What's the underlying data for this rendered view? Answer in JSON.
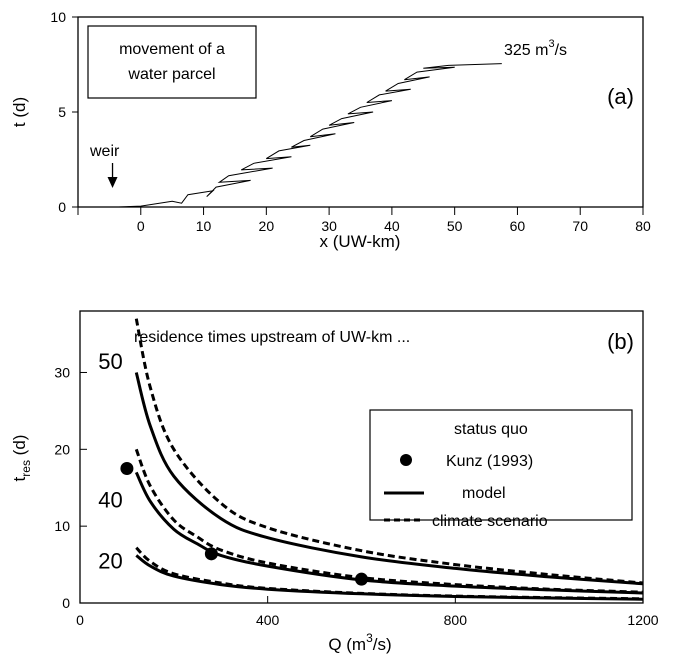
{
  "chart_data": [
    {
      "panel": "(a)",
      "type": "line",
      "xlabel": "x (UW-km)",
      "ylabel": "t (d)",
      "xlim": [
        -10,
        80
      ],
      "ylim": [
        0,
        10
      ],
      "x_ticks": [
        0,
        10,
        20,
        30,
        40,
        50,
        60,
        70,
        80
      ],
      "y_ticks": [
        0,
        5,
        10
      ],
      "annotations": {
        "box_line1": "movement of a",
        "box_line2": "water parcel",
        "flow_base": "325 m",
        "flow_sup": "3",
        "flow_tail": "/s",
        "weir": "weir",
        "weir_x": -4.5
      },
      "series": [
        {
          "points": [
            [
              -3.5,
              0
            ],
            [
              0,
              0.05
            ],
            [
              5,
              0.3
            ],
            [
              6.5,
              0.2
            ],
            [
              7.5,
              0.65
            ],
            [
              11.5,
              0.85
            ],
            [
              10.5,
              0.55
            ],
            [
              12,
              1.05
            ],
            [
              17.5,
              1.4
            ],
            [
              12.5,
              1.3
            ],
            [
              14,
              1.65
            ],
            [
              21,
              2.05
            ],
            [
              16,
              1.95
            ],
            [
              18,
              2.3
            ],
            [
              24,
              2.65
            ],
            [
              20,
              2.55
            ],
            [
              22,
              2.95
            ],
            [
              27,
              3.25
            ],
            [
              24,
              3.15
            ],
            [
              26,
              3.5
            ],
            [
              31,
              3.85
            ],
            [
              27,
              3.7
            ],
            [
              29,
              4.1
            ],
            [
              34,
              4.45
            ],
            [
              30,
              4.3
            ],
            [
              32,
              4.65
            ],
            [
              37,
              5.0
            ],
            [
              33,
              4.9
            ],
            [
              35,
              5.25
            ],
            [
              40,
              5.6
            ],
            [
              36,
              5.5
            ],
            [
              38,
              5.9
            ],
            [
              43,
              6.2
            ],
            [
              39,
              6.1
            ],
            [
              41,
              6.5
            ],
            [
              46,
              6.85
            ],
            [
              42,
              6.7
            ],
            [
              44,
              7.1
            ],
            [
              50,
              7.35
            ],
            [
              45,
              7.3
            ],
            [
              49,
              7.45
            ],
            [
              57.5,
              7.55
            ]
          ]
        }
      ]
    },
    {
      "panel": "(b)",
      "type": "line",
      "xlabel_base": "Q (m",
      "xlabel_sup": "3",
      "xlabel_tail": "/s)",
      "ylabel_base": "t",
      "ylabel_sub": "res",
      "ylabel_tail": " (d)",
      "xlim": [
        0,
        1200
      ],
      "ylim": [
        0,
        38
      ],
      "x_ticks": [
        0,
        400,
        800,
        1200
      ],
      "y_ticks": [
        0,
        10,
        20,
        30
      ],
      "title": "residence times upstream of UW-km ...",
      "curve_labels": [
        {
          "text": "50",
          "x": 65,
          "y": 31.5
        },
        {
          "text": "40",
          "x": 65,
          "y": 13.5
        },
        {
          "text": "20",
          "x": 65,
          "y": 5.5
        }
      ],
      "legend": {
        "heading": "status quo",
        "items": [
          "Kunz (1993)",
          "model",
          "climate scenario"
        ],
        "placement": "right"
      },
      "series": [
        {
          "name": "model",
          "km": "50",
          "style": "solid",
          "x": [
            120,
            150,
            200,
            300,
            400,
            600,
            800,
            1000,
            1200
          ],
          "y": [
            30,
            23,
            16.5,
            11,
            8.5,
            6,
            4.5,
            3.4,
            2.5
          ]
        },
        {
          "name": "climate scenario",
          "km": "50",
          "style": "dashed",
          "x": [
            120,
            150,
            200,
            300,
            400,
            600,
            800,
            1000,
            1200
          ],
          "y": [
            37,
            28,
            20,
            13,
            9.8,
            6.8,
            5.0,
            3.7,
            2.6
          ]
        },
        {
          "name": "model",
          "km": "40",
          "style": "solid",
          "x": [
            120,
            150,
            200,
            250,
            300,
            400,
            600,
            800,
            1000,
            1200
          ],
          "y": [
            17,
            13.2,
            9.6,
            7.7,
            6.2,
            4.8,
            3.0,
            2.2,
            1.7,
            1.3
          ]
        },
        {
          "name": "climate scenario",
          "km": "40",
          "style": "dashed",
          "x": [
            120,
            150,
            200,
            250,
            300,
            400,
            600,
            800,
            1000,
            1200
          ],
          "y": [
            20,
            15.2,
            10.8,
            8.6,
            6.9,
            5.2,
            3.3,
            2.4,
            1.8,
            1.4
          ]
        },
        {
          "name": "model",
          "km": "20",
          "style": "solid",
          "x": [
            120,
            150,
            200,
            300,
            400,
            600,
            800,
            1000,
            1200
          ],
          "y": [
            6.2,
            4.8,
            3.5,
            2.4,
            1.8,
            1.2,
            0.85,
            0.65,
            0.5
          ]
        },
        {
          "name": "climate scenario",
          "km": "20",
          "style": "dashed",
          "x": [
            120,
            150,
            200,
            300,
            400,
            600,
            800,
            1000,
            1200
          ],
          "y": [
            7.2,
            5.4,
            3.8,
            2.6,
            1.9,
            1.25,
            0.9,
            0.7,
            0.55
          ]
        },
        {
          "name": "Kunz (1993)",
          "style": "dots",
          "x": [
            100,
            280,
            600
          ],
          "y": [
            17.5,
            6.4,
            3.1
          ]
        }
      ]
    }
  ]
}
